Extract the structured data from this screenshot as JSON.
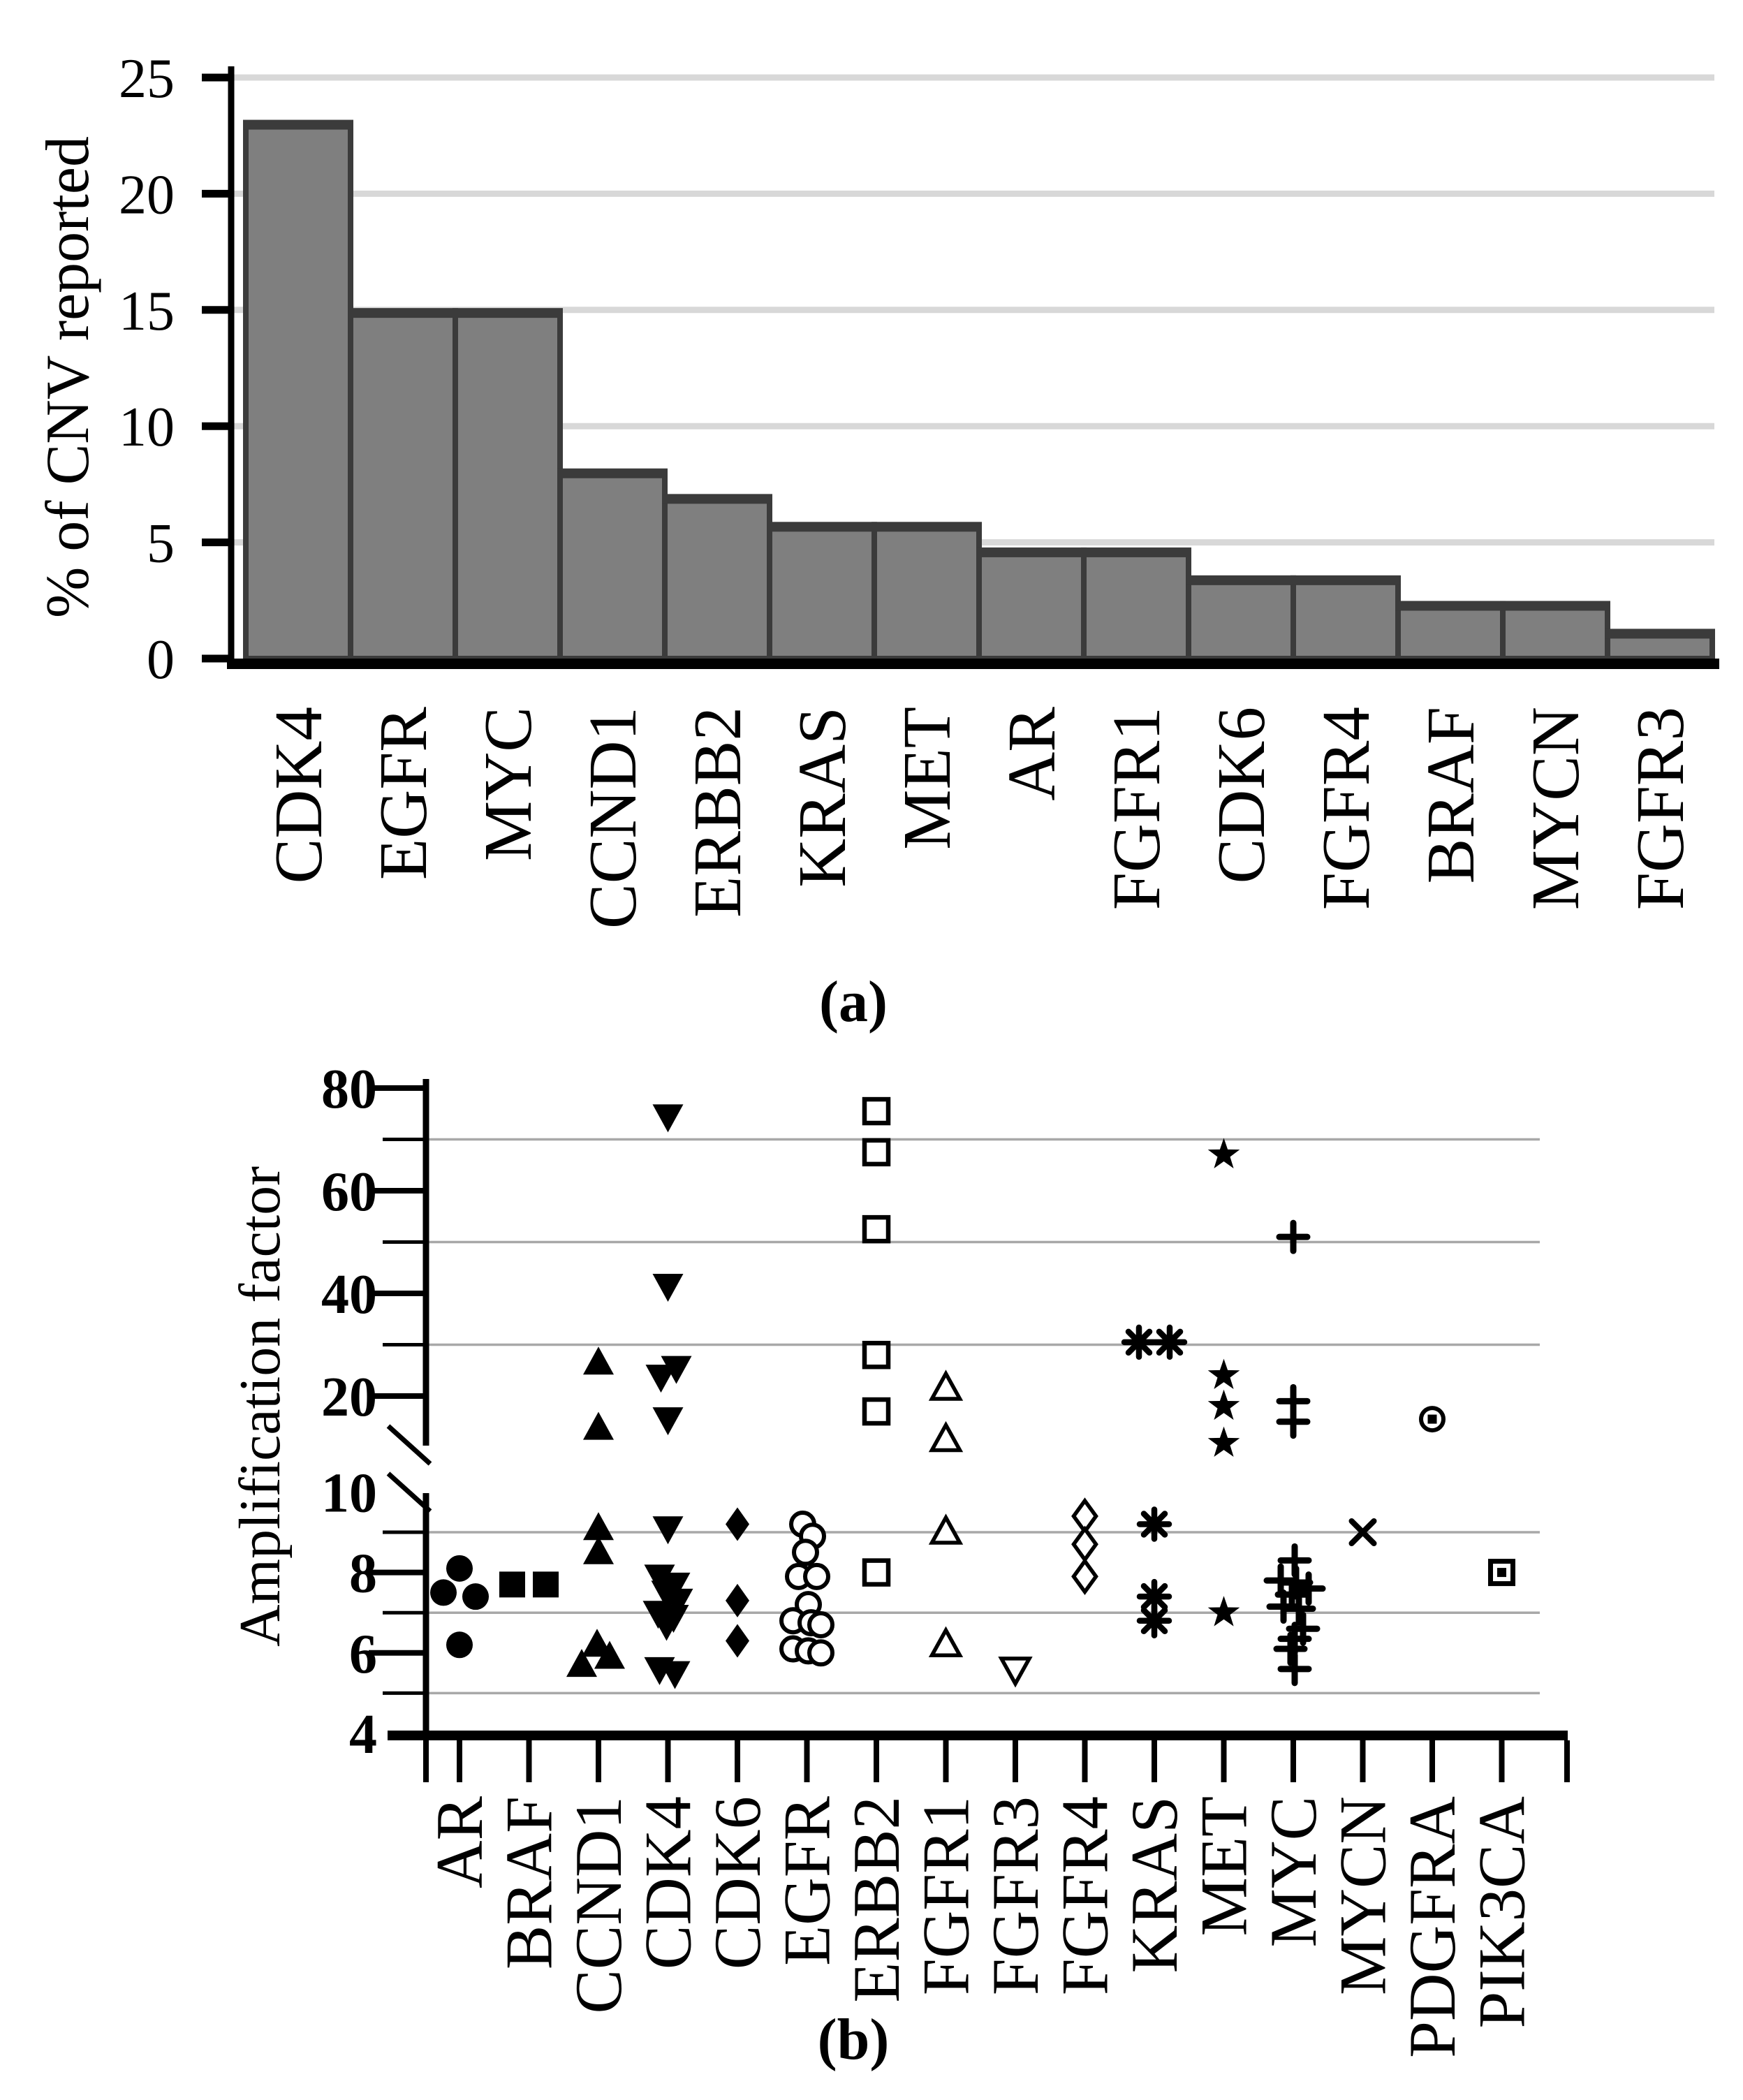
{
  "figure": {
    "background": "#ffffff",
    "panel_a_label": "(a)",
    "panel_b_label": "(b)"
  },
  "chart_data": [
    {
      "type": "bar",
      "panel": "a",
      "title": "",
      "xlabel": "",
      "ylabel": "% of CNV reported",
      "ylim": [
        0,
        25
      ],
      "yticks": [
        0,
        5,
        10,
        15,
        20,
        25
      ],
      "gridlines": [
        5,
        10,
        15,
        20,
        25
      ],
      "grid_on": true,
      "legend_position": "none",
      "categories": [
        "CDK4",
        "EGFR",
        "MYC",
        "CCND1",
        "ERBB2",
        "KRAS",
        "MET",
        "AR",
        "FGFR1",
        "CDK6",
        "FGFR4",
        "BRAF",
        "MYCN",
        "FGFR3"
      ],
      "values": [
        23.0,
        14.9,
        14.9,
        8.0,
        6.9,
        5.7,
        5.7,
        4.6,
        4.6,
        3.4,
        3.4,
        2.3,
        2.3,
        1.1
      ],
      "bar_fill_color": "#7f7f7f",
      "bar_border_color": "#3b3b3b",
      "grid_color": "#d8d8d8",
      "axis_color": "#000000"
    },
    {
      "type": "scatter",
      "panel": "b",
      "title": "",
      "xlabel": "",
      "ylabel": "Amplification factor",
      "broken_axis": {
        "lower_range": [
          4,
          10
        ],
        "upper_range": [
          11,
          80
        ],
        "lower_ticks": [
          4,
          6,
          8,
          10
        ],
        "lower_minor_gridlines": [
          5,
          7,
          9
        ],
        "upper_ticks": [
          20,
          40,
          60,
          80
        ],
        "upper_minor_gridlines": [
          30,
          50,
          70
        ]
      },
      "grid_color": "#a8a8a8",
      "axis_color": "#000000",
      "marker_color": "#000000",
      "categories": [
        "AR",
        "BRAF",
        "CCND1",
        "CDK4",
        "CDK6",
        "EGFR",
        "ERBB2",
        "FGFR1",
        "FGFR3",
        "FGFR4",
        "KRAS",
        "MET",
        "MYC",
        "MYCN",
        "PDGFRA",
        "PIK3CA"
      ],
      "series": [
        {
          "name": "AR",
          "marker": "filled-circle",
          "points": [
            {
              "v": 8.1,
              "dx": 0
            },
            {
              "v": 7.5,
              "dx": -23
            },
            {
              "v": 7.4,
              "dx": 23
            },
            {
              "v": 6.2,
              "dx": 0
            }
          ]
        },
        {
          "name": "BRAF",
          "marker": "filled-square",
          "points": [
            {
              "v": 7.7,
              "dx": -24
            },
            {
              "v": 7.7,
              "dx": 24
            }
          ]
        },
        {
          "name": "CCND1",
          "marker": "filled-triangle-up",
          "points": [
            {
              "v": 26.5,
              "dx": 0
            },
            {
              "v": 13.8,
              "dx": 0
            },
            {
              "v": 9.1,
              "dx": 0
            },
            {
              "v": 8.5,
              "dx": 0
            },
            {
              "v": 6.2,
              "dx": -2
            },
            {
              "v": 5.9,
              "dx": 16
            },
            {
              "v": 5.7,
              "dx": -24
            }
          ]
        },
        {
          "name": "CDK4",
          "marker": "filled-triangle-down",
          "points": [
            {
              "v": 74.5,
              "dx": 0
            },
            {
              "v": 41.5,
              "dx": 0
            },
            {
              "v": 25.5,
              "dx": 12
            },
            {
              "v": 23.8,
              "dx": -10
            },
            {
              "v": 15.5,
              "dx": 0
            },
            {
              "v": 9.1,
              "dx": 0
            },
            {
              "v": 7.9,
              "dx": -12
            },
            {
              "v": 7.7,
              "dx": 10
            },
            {
              "v": 7.5,
              "dx": -2
            },
            {
              "v": 7.3,
              "dx": 14
            },
            {
              "v": 7.0,
              "dx": -14
            },
            {
              "v": 6.9,
              "dx": 8
            },
            {
              "v": 6.7,
              "dx": -2
            },
            {
              "v": 5.6,
              "dx": -12
            },
            {
              "v": 5.5,
              "dx": 10
            }
          ]
        },
        {
          "name": "CDK6",
          "marker": "filled-diamond",
          "points": [
            {
              "v": 9.2,
              "dx": 0
            },
            {
              "v": 7.3,
              "dx": 0
            },
            {
              "v": 6.3,
              "dx": 0
            }
          ]
        },
        {
          "name": "EGFR",
          "marker": "open-circle",
          "points": [
            {
              "v": 9.2,
              "dx": -6
            },
            {
              "v": 8.9,
              "dx": 8
            },
            {
              "v": 8.5,
              "dx": -2
            },
            {
              "v": 7.9,
              "dx": -12
            },
            {
              "v": 7.9,
              "dx": 14
            },
            {
              "v": 7.2,
              "dx": 2
            },
            {
              "v": 6.8,
              "dx": -20
            },
            {
              "v": 6.75,
              "dx": 6
            },
            {
              "v": 6.7,
              "dx": 20
            },
            {
              "v": 6.1,
              "dx": -20
            },
            {
              "v": 6.05,
              "dx": 2
            },
            {
              "v": 6.0,
              "dx": 20
            }
          ]
        },
        {
          "name": "ERBB2",
          "marker": "open-square",
          "points": [
            {
              "v": 75.5,
              "dx": 0
            },
            {
              "v": 67.5,
              "dx": 0
            },
            {
              "v": 52.5,
              "dx": 0
            },
            {
              "v": 28,
              "dx": 0
            },
            {
              "v": 17,
              "dx": 0
            },
            {
              "v": 8.0,
              "dx": 0
            }
          ]
        },
        {
          "name": "FGFR1",
          "marker": "open-triangle-up",
          "points": [
            {
              "v": 21.5,
              "dx": 0
            },
            {
              "v": 11.5,
              "dx": 0
            },
            {
              "v": 9.0,
              "dx": 0
            },
            {
              "v": 6.2,
              "dx": 0
            }
          ]
        },
        {
          "name": "FGFR3",
          "marker": "open-triangle-down",
          "points": [
            {
              "v": 5.6,
              "dx": 0
            }
          ]
        },
        {
          "name": "FGFR4",
          "marker": "open-diamond",
          "points": [
            {
              "v": 9.4,
              "dx": 0
            },
            {
              "v": 8.7,
              "dx": 0
            },
            {
              "v": 7.9,
              "dx": 0
            }
          ]
        },
        {
          "name": "KRAS",
          "marker": "asterisk",
          "points": [
            {
              "v": 30.5,
              "dx": -22
            },
            {
              "v": 30.5,
              "dx": 22
            },
            {
              "v": 9.2,
              "dx": 0
            },
            {
              "v": 7.4,
              "dx": 0
            },
            {
              "v": 6.8,
              "dx": 0
            }
          ]
        },
        {
          "name": "MET",
          "marker": "filled-star",
          "points": [
            {
              "v": 67,
              "dx": 0
            },
            {
              "v": 24,
              "dx": 0
            },
            {
              "v": 18,
              "dx": 0
            },
            {
              "v": 10.8,
              "dx": 0
            },
            {
              "v": 7.0,
              "dx": 0
            }
          ]
        },
        {
          "name": "MYC",
          "marker": "plus",
          "points": [
            {
              "v": 51,
              "dx": 0
            },
            {
              "v": 19,
              "dx": 0
            },
            {
              "v": 15,
              "dx": 0
            },
            {
              "v": 8.3,
              "dx": 2
            },
            {
              "v": 7.8,
              "dx": -18
            },
            {
              "v": 7.75,
              "dx": 4
            },
            {
              "v": 7.6,
              "dx": 22
            },
            {
              "v": 7.45,
              "dx": -2
            },
            {
              "v": 7.15,
              "dx": -14
            },
            {
              "v": 7.1,
              "dx": 8
            },
            {
              "v": 6.6,
              "dx": 14
            },
            {
              "v": 6.35,
              "dx": 2
            },
            {
              "v": 6.1,
              "dx": -4
            },
            {
              "v": 5.6,
              "dx": 2
            }
          ]
        },
        {
          "name": "MYCN",
          "marker": "x-cross",
          "points": [
            {
              "v": 9.0,
              "dx": 0
            }
          ]
        },
        {
          "name": "PDGFRA",
          "marker": "circle-dot",
          "points": [
            {
              "v": 15.5,
              "dx": 0
            }
          ]
        },
        {
          "name": "PIK3CA",
          "marker": "square-dot",
          "points": [
            {
              "v": 8.0,
              "dx": 0
            }
          ]
        }
      ]
    }
  ]
}
